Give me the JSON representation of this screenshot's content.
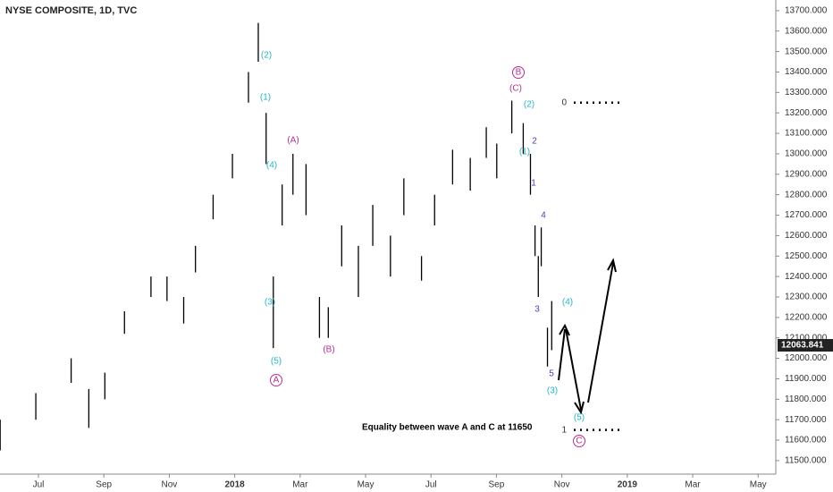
{
  "chart_data": {
    "type": "ohlc",
    "title": "NYSE COMPOSITE, 1D, TVC",
    "color": "#000000",
    "x": [
      -1.17,
      -0.08,
      1.0,
      1.54,
      2.03,
      2.63,
      3.44,
      3.93,
      4.44,
      4.8,
      5.34,
      5.93,
      6.42,
      6.72,
      6.96,
      7.18,
      7.45,
      7.78,
      8.18,
      8.59,
      8.86,
      9.27,
      9.78,
      10.22,
      10.76,
      11.17,
      11.71,
      12.11,
      12.66,
      13.2,
      13.69,
      14.01,
      14.47,
      14.82,
      15.04,
      15.18,
      15.28,
      15.37,
      15.56,
      15.69
    ],
    "high": [
      11700,
      11830,
      12000,
      11850,
      11930,
      12230,
      12400,
      12400,
      12300,
      12550,
      12800,
      13000,
      13400,
      13640,
      13200,
      12400,
      12850,
      13000,
      12950,
      12300,
      12250,
      12650,
      12550,
      12750,
      12600,
      12880,
      12500,
      12800,
      13020,
      12980,
      13130,
      13050,
      13260,
      13150,
      13000,
      12650,
      12500,
      12640,
      12150,
      12280
    ],
    "low": [
      11550,
      11700,
      11880,
      11660,
      11800,
      12120,
      12300,
      12280,
      12170,
      12420,
      12680,
      12880,
      13250,
      13450,
      12950,
      12050,
      12650,
      12800,
      12700,
      12100,
      12100,
      12450,
      12300,
      12550,
      12400,
      12700,
      12380,
      12650,
      12850,
      12820,
      12980,
      12880,
      13100,
      13000,
      12800,
      12500,
      12300,
      12450,
      11960,
      12040
    ],
    "last_price": 12063.841,
    "xlim": [
      -1.175,
      22.54
    ],
    "ylim": [
      11434,
      13752
    ],
    "xticks": [
      {
        "value": 0,
        "label": "Jul"
      },
      {
        "value": 2,
        "label": "Sep"
      },
      {
        "value": 4,
        "label": "Nov"
      },
      {
        "value": 6,
        "label": "2018"
      },
      {
        "value": 8,
        "label": "Mar"
      },
      {
        "value": 10,
        "label": "May"
      },
      {
        "value": 12,
        "label": "Jul"
      },
      {
        "value": 14,
        "label": "Sep"
      },
      {
        "value": 16,
        "label": "Nov"
      },
      {
        "value": 18,
        "label": "2019"
      },
      {
        "value": 20,
        "label": "Mar"
      },
      {
        "value": 22,
        "label": "May"
      }
    ],
    "yticks": [
      {
        "value": 11500,
        "label": "11500.000"
      },
      {
        "value": 11600,
        "label": "11600.000"
      },
      {
        "value": 11700,
        "label": "11700.000"
      },
      {
        "value": 11800,
        "label": "11800.000"
      },
      {
        "value": 11900,
        "label": "11900.000"
      },
      {
        "value": 12000,
        "label": "12000.000"
      },
      {
        "value": 12100,
        "label": "12100.000"
      },
      {
        "value": 12200,
        "label": "12200.000"
      },
      {
        "value": 12300,
        "label": "12300.000"
      },
      {
        "value": 12400,
        "label": "12400.000"
      },
      {
        "value": 12500,
        "label": "12500.000"
      },
      {
        "value": 12600,
        "label": "12600.000"
      },
      {
        "value": 12700,
        "label": "12700.000"
      },
      {
        "value": 12800,
        "label": "12800.000"
      },
      {
        "value": 12900,
        "label": "12900.000"
      },
      {
        "value": 13000,
        "label": "13000.000"
      },
      {
        "value": 13100,
        "label": "13100.000"
      },
      {
        "value": 13200,
        "label": "13200.000"
      },
      {
        "value": 13300,
        "label": "13300.000"
      },
      {
        "value": 13400,
        "label": "13400.000"
      },
      {
        "value": 13500,
        "label": "13500.000"
      },
      {
        "value": 13600,
        "label": "13600.000"
      },
      {
        "value": 13700,
        "label": "13700.000"
      }
    ],
    "levels": [
      {
        "label": "0",
        "value": 13250
      },
      {
        "label": "1",
        "value": 11650
      }
    ],
    "annotations": [
      {
        "text": "(2)",
        "color": "#26b5c7"
      },
      {
        "text": "(1)",
        "color": "#26b5c7"
      },
      {
        "text": "(4)",
        "color": "#26b5c7"
      },
      {
        "text": "(3)",
        "color": "#26b5c7"
      },
      {
        "text": "(5)",
        "color": "#26b5c7"
      },
      {
        "text": "A",
        "color": "#b5308f"
      },
      {
        "text": "(A)",
        "color": "#b5308f"
      },
      {
        "text": "(B)",
        "color": "#b5308f"
      },
      {
        "text": "B",
        "color": "#b5308f"
      },
      {
        "text": "(C)",
        "color": "#b5308f"
      },
      {
        "text": "(2)",
        "color": "#26b5c7"
      },
      {
        "text": "2",
        "color": "#4a3fb5"
      },
      {
        "text": "(1)",
        "color": "#26b5c7"
      },
      {
        "text": "1",
        "color": "#4a3fb5"
      },
      {
        "text": "4",
        "color": "#4a3fb5"
      },
      {
        "text": "3",
        "color": "#4a3fb5"
      },
      {
        "text": "5",
        "color": "#4a3fb5"
      },
      {
        "text": "(3)",
        "color": "#26b5c7"
      },
      {
        "text": "(4)",
        "color": "#26b5c7"
      },
      {
        "text": "(5)",
        "color": "#26b5c7"
      },
      {
        "text": "C",
        "color": "#b5308f"
      },
      {
        "text": "Equality between wave A and C at 11650",
        "color": "#000000"
      }
    ]
  }
}
